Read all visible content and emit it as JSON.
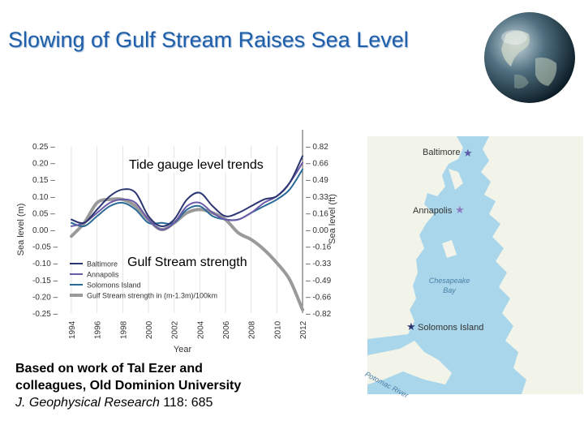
{
  "slide": {
    "title": "Slowing of Gulf Stream Raises Sea Level",
    "overlay_top": "Tide gauge level trends",
    "overlay_bottom": "Gulf Stream strength",
    "credit_line1": "Based on work of Tal Ezer and",
    "credit_line2": "colleagues, Old Dominion University",
    "credit_journal": "J. Geophysical Research",
    "credit_ref": " 118: 685"
  },
  "map": {
    "labels": [
      "Baltimore",
      "Annapolis",
      "Chesapeake Bay",
      "Solomons Island",
      "Potomac River"
    ],
    "colors": {
      "water": "#a9d6ea",
      "land": "#f2f4e9",
      "star": "#5b5ba8",
      "water_label": "#4a7fa8"
    }
  },
  "chart_data": {
    "type": "line",
    "xlabel": "Year",
    "ylabel_left": "Sea level (m)",
    "ylabel_right": "Sea level (ft)",
    "xlim": [
      1994,
      2012
    ],
    "ylim": [
      -0.25,
      0.25
    ],
    "x_ticks": [
      "1994",
      "1996",
      "1998",
      "2000",
      "2002",
      "2004",
      "2006",
      "2008",
      "2010",
      "2012"
    ],
    "y_ticks_left": [
      "0.25",
      "0.20",
      "0.15",
      "0.10",
      "0.05",
      "0.00",
      "-0.05",
      "-0.10",
      "-0.15",
      "-0.20",
      "-0.25"
    ],
    "y_ticks_right": [
      "0.82",
      "0.66",
      "0.49",
      "0.33",
      "0.16",
      "0.00",
      "-0.16",
      "-0.33",
      "-0.49",
      "-0.66",
      "-0.82"
    ],
    "x": [
      1994,
      1995,
      1996,
      1997,
      1998,
      1999,
      2000,
      2001,
      2002,
      2003,
      2004,
      2005,
      2006,
      2007,
      2008,
      2009,
      2010,
      2011,
      2012
    ],
    "series": [
      {
        "name": "Baltimore",
        "color": "#2b3570",
        "width": 2,
        "values": [
          0.03,
          0.02,
          0.06,
          0.1,
          0.12,
          0.11,
          0.04,
          0.01,
          0.03,
          0.09,
          0.11,
          0.07,
          0.04,
          0.05,
          0.07,
          0.09,
          0.1,
          0.14,
          0.22
        ]
      },
      {
        "name": "Annapolis",
        "color": "#6a5aa8",
        "width": 2,
        "values": [
          0.01,
          0.02,
          0.05,
          0.08,
          0.09,
          0.08,
          0.03,
          0.0,
          0.02,
          0.07,
          0.08,
          0.05,
          0.03,
          0.03,
          0.05,
          0.08,
          0.1,
          0.14,
          0.2
        ]
      },
      {
        "name": "Solomons Island",
        "color": "#2a6a96",
        "width": 2,
        "values": [
          0.02,
          0.01,
          0.04,
          0.07,
          0.08,
          0.06,
          0.02,
          0.02,
          0.02,
          0.06,
          0.07,
          0.04,
          0.03,
          0.03,
          0.05,
          0.07,
          0.09,
          0.12,
          0.18
        ]
      },
      {
        "name": "Gulf Stream strength in (m-1.3m)/100km",
        "color": "#9a9a9a",
        "width": 4,
        "values": [
          -0.02,
          0.02,
          0.08,
          0.09,
          0.09,
          0.07,
          0.03,
          0.0,
          0.02,
          0.05,
          0.06,
          0.05,
          0.03,
          -0.01,
          -0.03,
          -0.06,
          -0.1,
          -0.15,
          -0.24
        ]
      }
    ],
    "legend_placement": "bottom-left"
  }
}
